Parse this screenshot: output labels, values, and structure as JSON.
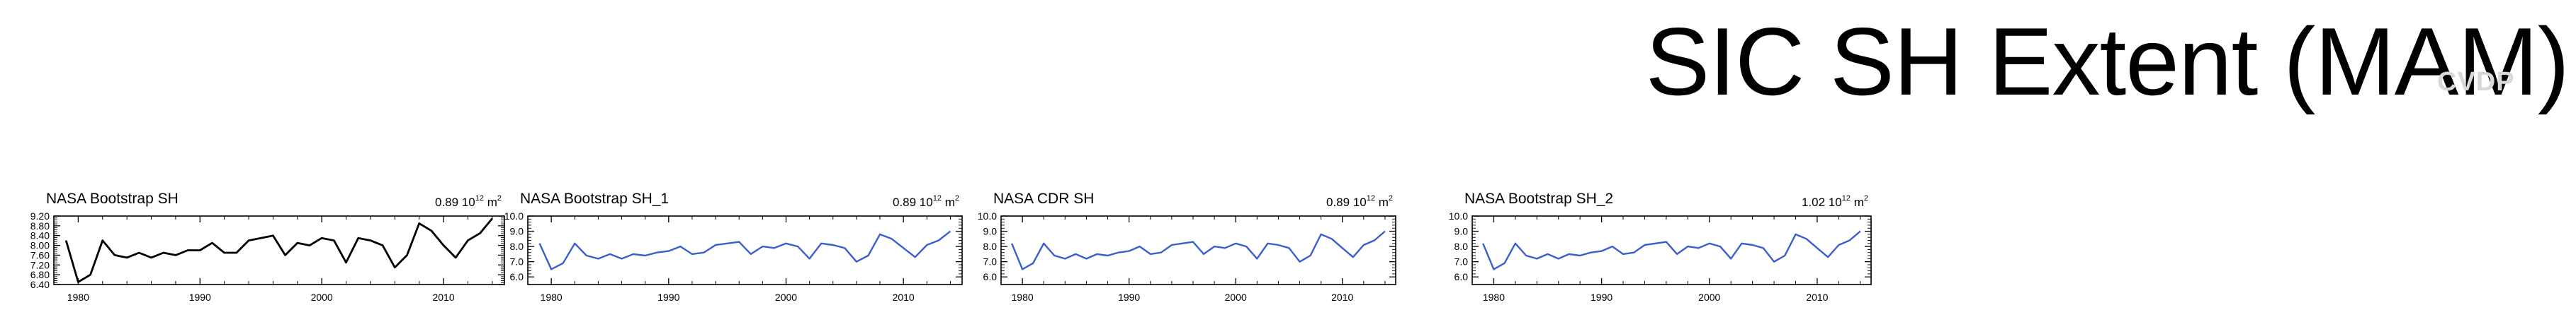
{
  "header": {
    "title": "SIC SH Extent (MAM)",
    "watermark": "CVDP"
  },
  "chart_data": [
    {
      "type": "line",
      "title": "NASA Bootstrap SH",
      "annotation": "0.89 10",
      "annotation_exp": "12",
      "annotation_unit": " m",
      "annotation_unit_exp": "2",
      "line_color": "#000000",
      "xlim": [
        1978,
        2015
      ],
      "ylim": [
        6.4,
        9.2
      ],
      "xticks": [
        1980,
        1990,
        2000,
        2010
      ],
      "yticks": [
        6.4,
        6.8,
        7.2,
        7.6,
        8.0,
        8.4,
        8.8,
        9.2
      ],
      "yticklabels": [
        "6.40",
        "6.80",
        "7.20",
        "7.60",
        "8.00",
        "8.40",
        "8.80",
        "9.20"
      ],
      "x": [
        1979,
        1980,
        1981,
        1982,
        1983,
        1984,
        1985,
        1986,
        1987,
        1988,
        1989,
        1990,
        1991,
        1992,
        1993,
        1994,
        1995,
        1996,
        1997,
        1998,
        1999,
        2000,
        2001,
        2002,
        2003,
        2004,
        2005,
        2006,
        2007,
        2008,
        2009,
        2010,
        2011,
        2012,
        2013,
        2014
      ],
      "values": [
        8.2,
        6.5,
        6.8,
        8.2,
        7.6,
        7.5,
        7.7,
        7.5,
        7.7,
        7.6,
        7.8,
        7.8,
        8.1,
        7.7,
        7.7,
        8.2,
        8.3,
        8.4,
        7.6,
        8.1,
        8.0,
        8.3,
        8.2,
        7.3,
        8.3,
        8.2,
        8.0,
        7.1,
        7.6,
        8.9,
        8.6,
        8.0,
        7.5,
        8.2,
        8.5,
        9.1
      ]
    },
    {
      "type": "line",
      "title": "NASA Bootstrap SH_1",
      "annotation": "0.89 10",
      "annotation_exp": "12",
      "annotation_unit": " m",
      "annotation_unit_exp": "2",
      "line_color": "#3a5fcd",
      "xlim": [
        1978,
        2015
      ],
      "ylim": [
        5.5,
        10.0
      ],
      "xticks": [
        1980,
        1990,
        2000,
        2010
      ],
      "yticks": [
        6.0,
        7.0,
        8.0,
        9.0,
        10.0
      ],
      "yticklabels": [
        "6.0",
        "7.0",
        "8.0",
        "9.0",
        "10.0"
      ],
      "x": [
        1979,
        1980,
        1981,
        1982,
        1983,
        1984,
        1985,
        1986,
        1987,
        1988,
        1989,
        1990,
        1991,
        1992,
        1993,
        1994,
        1995,
        1996,
        1997,
        1998,
        1999,
        2000,
        2001,
        2002,
        2003,
        2004,
        2005,
        2006,
        2007,
        2008,
        2009,
        2010,
        2011,
        2012,
        2013,
        2014
      ],
      "values": [
        8.2,
        6.5,
        6.9,
        8.2,
        7.4,
        7.2,
        7.5,
        7.2,
        7.5,
        7.4,
        7.6,
        7.7,
        8.0,
        7.5,
        7.6,
        8.1,
        8.2,
        8.3,
        7.5,
        8.0,
        7.9,
        8.2,
        8.0,
        7.2,
        8.2,
        8.1,
        7.9,
        7.0,
        7.4,
        8.8,
        8.5,
        7.9,
        7.3,
        8.1,
        8.4,
        9.0
      ]
    },
    {
      "type": "line",
      "title": "NASA CDR SH",
      "annotation": "0.89 10",
      "annotation_exp": "12",
      "annotation_unit": " m",
      "annotation_unit_exp": "2",
      "line_color": "#3a5fcd",
      "xlim": [
        1978,
        2015
      ],
      "ylim": [
        5.5,
        10.0
      ],
      "xticks": [
        1980,
        1990,
        2000,
        2010
      ],
      "yticks": [
        6.0,
        7.0,
        8.0,
        9.0,
        10.0
      ],
      "yticklabels": [
        "6.0",
        "7.0",
        "8.0",
        "9.0",
        "10.0"
      ],
      "x": [
        1979,
        1980,
        1981,
        1982,
        1983,
        1984,
        1985,
        1986,
        1987,
        1988,
        1989,
        1990,
        1991,
        1992,
        1993,
        1994,
        1995,
        1996,
        1997,
        1998,
        1999,
        2000,
        2001,
        2002,
        2003,
        2004,
        2005,
        2006,
        2007,
        2008,
        2009,
        2010,
        2011,
        2012,
        2013,
        2014
      ],
      "values": [
        8.2,
        6.5,
        6.9,
        8.2,
        7.4,
        7.2,
        7.5,
        7.2,
        7.5,
        7.4,
        7.6,
        7.7,
        8.0,
        7.5,
        7.6,
        8.1,
        8.2,
        8.3,
        7.5,
        8.0,
        7.9,
        8.2,
        8.0,
        7.2,
        8.2,
        8.1,
        7.9,
        7.0,
        7.4,
        8.8,
        8.5,
        7.9,
        7.3,
        8.1,
        8.4,
        9.0
      ]
    },
    {
      "type": "line",
      "title": "NASA Bootstrap SH_2",
      "annotation": "1.02 10",
      "annotation_exp": "12",
      "annotation_unit": " m",
      "annotation_unit_exp": "2",
      "line_color": "#3a5fcd",
      "xlim": [
        1978,
        2015
      ],
      "ylim": [
        5.5,
        10.0
      ],
      "xticks": [
        1980,
        1990,
        2000,
        2010
      ],
      "yticks": [
        6.0,
        7.0,
        8.0,
        9.0,
        10.0
      ],
      "yticklabels": [
        "6.0",
        "7.0",
        "8.0",
        "9.0",
        "10.0"
      ],
      "x": [
        1979,
        1980,
        1981,
        1982,
        1983,
        1984,
        1985,
        1986,
        1987,
        1988,
        1989,
        1990,
        1991,
        1992,
        1993,
        1994,
        1995,
        1996,
        1997,
        1998,
        1999,
        2000,
        2001,
        2002,
        2003,
        2004,
        2005,
        2006,
        2007,
        2008,
        2009,
        2010,
        2011,
        2012,
        2013,
        2014
      ],
      "values": [
        8.2,
        6.5,
        6.9,
        8.2,
        7.4,
        7.2,
        7.5,
        7.2,
        7.5,
        7.4,
        7.6,
        7.7,
        8.0,
        7.5,
        7.6,
        8.1,
        8.2,
        8.3,
        7.5,
        8.0,
        7.9,
        8.2,
        8.0,
        7.2,
        8.2,
        8.1,
        7.9,
        7.0,
        7.4,
        8.8,
        8.5,
        7.9,
        7.3,
        8.1,
        8.4,
        9.0
      ]
    }
  ]
}
